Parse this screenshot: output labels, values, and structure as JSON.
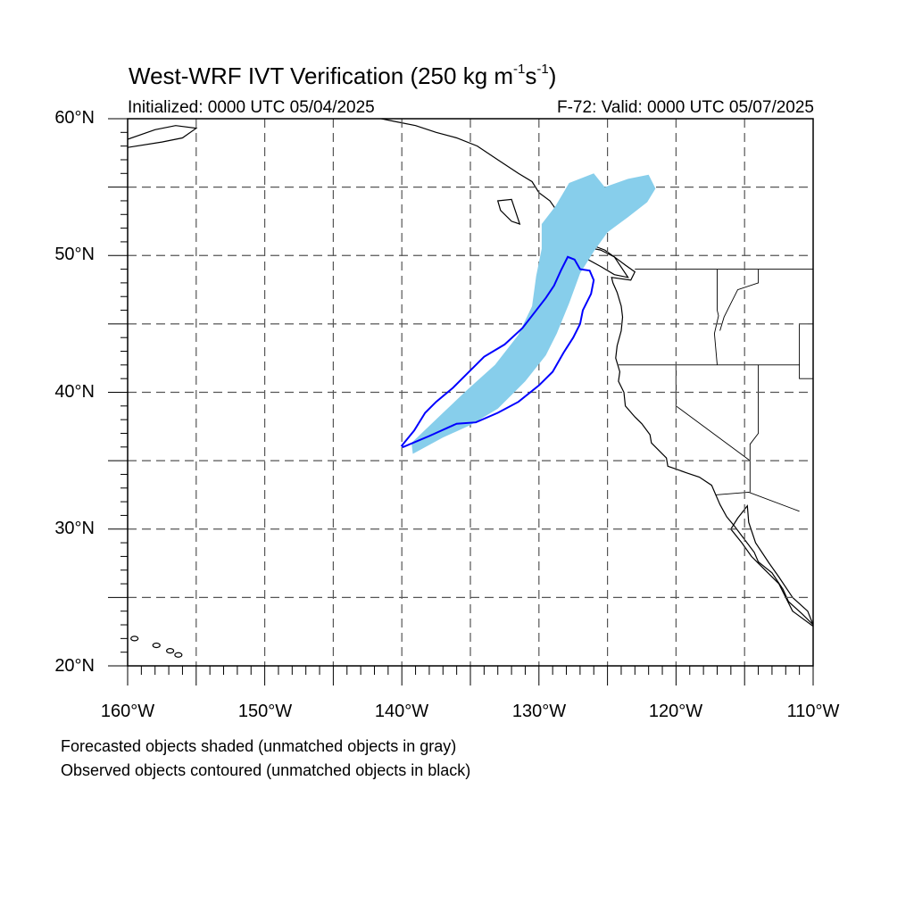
{
  "title": {
    "main": "West-WRF IVT Verification (250 kg m",
    "exp1": "-1",
    "mid": "s",
    "exp2": "-1",
    "end": ")"
  },
  "subtitle": {
    "initialized": "Initialized: 0000 UTC 05/04/2025",
    "valid": "F-72: Valid: 0000 UTC 05/07/2025"
  },
  "axes": {
    "lat_labels": [
      "60°N",
      "50°N",
      "40°N",
      "30°N",
      "20°N"
    ],
    "lon_labels": [
      "160°W",
      "150°W",
      "140°W",
      "130°W",
      "120°W",
      "110°W"
    ],
    "lat_range": [
      20,
      60
    ],
    "lon_range": [
      -160,
      -110
    ],
    "grid": true,
    "grid_style": "dashed"
  },
  "legend": {
    "line1": "Forecasted objects shaded (unmatched objects in gray)",
    "line2": "Observed objects contoured (unmatched objects in black)"
  },
  "colors": {
    "forecast_fill": "#87ceeb",
    "observed_contour": "#0000ff",
    "coastline": "#000000",
    "grid": "#555555"
  },
  "objects": {
    "forecast": {
      "description_shape": "lon/lat polygon",
      "points": [
        [
          -139.2,
          35.5
        ],
        [
          -137.0,
          36.7
        ],
        [
          -135.0,
          37.6
        ],
        [
          -133.0,
          38.8
        ],
        [
          -131.0,
          40.8
        ],
        [
          -129.5,
          42.7
        ],
        [
          -128.7,
          44.3
        ],
        [
          -127.8,
          46.5
        ],
        [
          -127.0,
          48.7
        ],
        [
          -126.0,
          50.3
        ],
        [
          -125.0,
          51.7
        ],
        [
          -123.5,
          52.8
        ],
        [
          -122.1,
          53.9
        ],
        [
          -121.5,
          54.9
        ],
        [
          -122.0,
          55.9
        ],
        [
          -123.5,
          55.6
        ],
        [
          -125.2,
          55.0
        ],
        [
          -126.0,
          56.0
        ],
        [
          -127.8,
          55.3
        ],
        [
          -128.8,
          53.6
        ],
        [
          -129.8,
          52.3
        ],
        [
          -129.8,
          50.5
        ],
        [
          -130.2,
          48.5
        ],
        [
          -130.5,
          46.3
        ],
        [
          -131.5,
          44.2
        ],
        [
          -133.2,
          42.0
        ],
        [
          -135.2,
          40.2
        ],
        [
          -137.0,
          38.5
        ],
        [
          -139.3,
          36.3
        ]
      ]
    },
    "observed": {
      "points": [
        [
          -139.9,
          36.0
        ],
        [
          -138.0,
          36.8
        ],
        [
          -136.0,
          37.7
        ],
        [
          -134.6,
          37.8
        ],
        [
          -133.0,
          38.5
        ],
        [
          -131.5,
          39.3
        ],
        [
          -130.0,
          40.5
        ],
        [
          -129.0,
          41.5
        ],
        [
          -128.2,
          42.9
        ],
        [
          -127.5,
          44.0
        ],
        [
          -127.0,
          45.0
        ],
        [
          -126.8,
          46.0
        ],
        [
          -126.2,
          47.2
        ],
        [
          -126.0,
          48.2
        ],
        [
          -126.3,
          48.9
        ],
        [
          -127.0,
          49.0
        ],
        [
          -127.4,
          49.7
        ],
        [
          -127.9,
          49.9
        ],
        [
          -128.4,
          48.9
        ],
        [
          -128.9,
          47.8
        ],
        [
          -129.5,
          46.9
        ],
        [
          -130.5,
          45.6
        ],
        [
          -131.2,
          44.7
        ],
        [
          -132.5,
          43.5
        ],
        [
          -134.0,
          42.6
        ],
        [
          -135.3,
          41.3
        ],
        [
          -136.3,
          40.3
        ],
        [
          -137.5,
          39.3
        ],
        [
          -138.3,
          38.5
        ],
        [
          -139.1,
          37.2
        ],
        [
          -140.0,
          36.1
        ]
      ]
    }
  },
  "land": {
    "coast": [
      [
        -110,
        23.0
      ],
      [
        -110.4,
        24.0
      ],
      [
        -111.5,
        25.0
      ],
      [
        -112.5,
        26.5
      ],
      [
        -113.2,
        27.5
      ],
      [
        -114.2,
        29.0
      ],
      [
        -114.7,
        30.5
      ],
      [
        -114.8,
        31.7
      ],
      [
        -115.5,
        30.8
      ],
      [
        -116.0,
        30.0
      ],
      [
        -115.2,
        29.0
      ],
      [
        -114.5,
        28.0
      ],
      [
        -113.5,
        27.0
      ],
      [
        -112.5,
        26.0
      ],
      [
        -112.0,
        25.0
      ],
      [
        -111.5,
        24.0
      ],
      [
        -110.0,
        22.9
      ]
    ],
    "west_coast": [
      [
        -117.1,
        32.5
      ],
      [
        -117.4,
        33.2
      ],
      [
        -118.3,
        33.8
      ],
      [
        -119.2,
        34.1
      ],
      [
        -120.6,
        34.6
      ],
      [
        -120.7,
        35.2
      ],
      [
        -121.8,
        36.3
      ],
      [
        -121.9,
        36.9
      ],
      [
        -122.5,
        37.7
      ],
      [
        -123.0,
        38.2
      ],
      [
        -123.7,
        39.0
      ],
      [
        -123.8,
        40.0
      ],
      [
        -124.2,
        40.8
      ],
      [
        -124.1,
        41.5
      ],
      [
        -124.4,
        42.5
      ],
      [
        -124.3,
        43.4
      ],
      [
        -124.0,
        44.5
      ],
      [
        -123.9,
        45.5
      ],
      [
        -124.0,
        46.3
      ],
      [
        -124.3,
        47.3
      ],
      [
        -124.6,
        48.0
      ],
      [
        -124.7,
        48.4
      ],
      [
        -123.3,
        48.2
      ],
      [
        -123.0,
        48.8
      ],
      [
        -123.7,
        49.3
      ],
      [
        -124.5,
        49.9
      ],
      [
        -125.2,
        50.4
      ],
      [
        -126.5,
        50.9
      ],
      [
        -127.3,
        51.3
      ],
      [
        -127.9,
        52.2
      ],
      [
        -128.5,
        53.0
      ],
      [
        -129.2,
        54.0
      ],
      [
        -130.0,
        54.6
      ],
      [
        -130.5,
        55.4
      ],
      [
        -131.5,
        56.0
      ],
      [
        -133.0,
        57.0
      ],
      [
        -134.5,
        58.0
      ],
      [
        -136.0,
        58.6
      ],
      [
        -137.5,
        59.0
      ],
      [
        -139.0,
        59.5
      ],
      [
        -140.5,
        59.8
      ],
      [
        -141.5,
        60.0
      ]
    ],
    "baja_west": [
      [
        -117.1,
        32.5
      ],
      [
        -116.8,
        31.8
      ],
      [
        -116.3,
        30.9
      ],
      [
        -115.8,
        30.3
      ],
      [
        -115.2,
        29.5
      ],
      [
        -114.3,
        28.3
      ],
      [
        -114.0,
        27.6
      ],
      [
        -113.0,
        26.8
      ],
      [
        -112.2,
        25.6
      ],
      [
        -111.8,
        24.7
      ],
      [
        -110.8,
        23.8
      ],
      [
        -110.0,
        23.0
      ]
    ],
    "borders": [
      [
        [
          -123.0,
          49.0
        ],
        [
          -110,
          49.0
        ]
      ],
      [
        [
          -117.0,
          49.0
        ],
        [
          -117.0,
          46.0
        ],
        [
          -116.9,
          45.6
        ],
        [
          -117.2,
          44.3
        ],
        [
          -117.0,
          42.0
        ]
      ],
      [
        [
          -124.2,
          42.0
        ],
        [
          -111.0,
          42.0
        ]
      ],
      [
        [
          -120.0,
          42.0
        ],
        [
          -120.0,
          39.0
        ],
        [
          -114.6,
          35.0
        ]
      ],
      [
        [
          -114.0,
          42.0
        ],
        [
          -114.0,
          37.0
        ],
        [
          -114.6,
          36.2
        ],
        [
          -114.6,
          35.0
        ]
      ],
      [
        [
          -117.1,
          32.5
        ],
        [
          -114.7,
          32.7
        ],
        [
          -111.0,
          31.3
        ]
      ],
      [
        [
          -114.6,
          35.0
        ],
        [
          -114.6,
          32.7
        ]
      ],
      [
        [
          -111.0,
          45.0
        ],
        [
          -110.0,
          45.0
        ]
      ],
      [
        [
          -110,
          41
        ],
        [
          -111,
          41
        ],
        [
          -111,
          45
        ]
      ],
      [
        [
          -114.0,
          49.0
        ],
        [
          -114.0,
          48.0
        ],
        [
          -115.5,
          47.5
        ],
        [
          -116.0,
          46.5
        ],
        [
          -116.5,
          45.5
        ],
        [
          -116.8,
          44.5
        ]
      ]
    ]
  }
}
